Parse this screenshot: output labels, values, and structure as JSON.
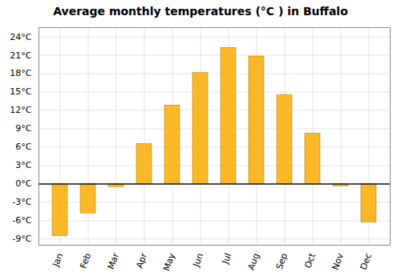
{
  "chart_data": {
    "type": "bar",
    "title": "Average monthly temperatures (°C ) in Buffalo",
    "categories": [
      "Jan",
      "Feb",
      "Mar",
      "Apr",
      "May",
      "Jun",
      "Jul",
      "Aug",
      "Sep",
      "Oct",
      "Nov",
      "Dec"
    ],
    "values": [
      -8.5,
      -4.8,
      -0.5,
      6.5,
      12.8,
      18.1,
      22.2,
      20.8,
      14.5,
      8.2,
      -0.4,
      -6.3
    ],
    "color": "#FDB827",
    "ylim": [
      -10.0,
      25.5
    ],
    "yticks": [
      {
        "value": -9,
        "label": "-9°C"
      },
      {
        "value": -6,
        "label": "-6°C"
      },
      {
        "value": -3,
        "label": "-3°C"
      },
      {
        "value": 0,
        "label": "0°C"
      },
      {
        "value": 3,
        "label": "3°C"
      },
      {
        "value": 6,
        "label": "6°C"
      },
      {
        "value": 9,
        "label": "9°C"
      },
      {
        "value": 12,
        "label": "12°C"
      },
      {
        "value": 15,
        "label": "15°C"
      },
      {
        "value": 18,
        "label": "18°C"
      },
      {
        "value": 21,
        "label": "21°C"
      },
      {
        "value": 24,
        "label": "24°C"
      }
    ],
    "grid": true
  }
}
